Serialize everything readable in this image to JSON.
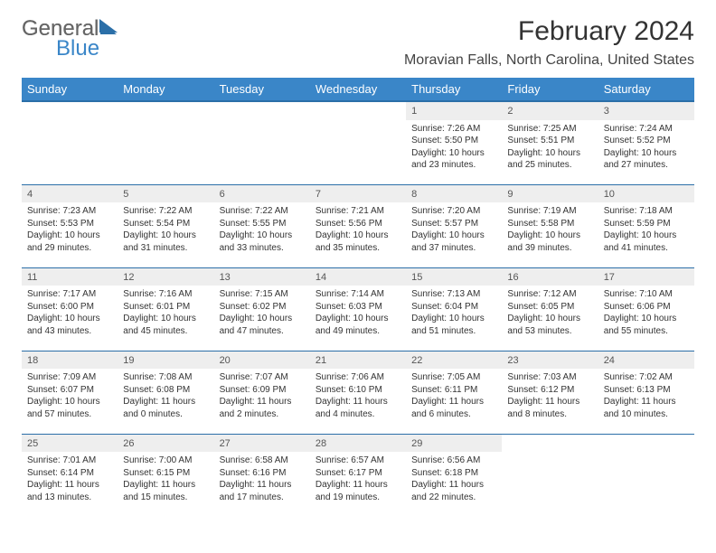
{
  "logo": {
    "part1": "General",
    "part2": "Blue"
  },
  "title": "February 2024",
  "location": "Moravian Falls, North Carolina, United States",
  "colors": {
    "header_bg": "#3a86c8",
    "header_border": "#2b6fa8",
    "daynum_bg": "#eeeeee",
    "text": "#333333",
    "logo_gray": "#666666",
    "logo_blue": "#3a86c8"
  },
  "weekdays": [
    "Sunday",
    "Monday",
    "Tuesday",
    "Wednesday",
    "Thursday",
    "Friday",
    "Saturday"
  ],
  "weeks": [
    [
      null,
      null,
      null,
      null,
      {
        "n": "1",
        "sr": "7:26 AM",
        "ss": "5:50 PM",
        "dl": "10 hours and 23 minutes."
      },
      {
        "n": "2",
        "sr": "7:25 AM",
        "ss": "5:51 PM",
        "dl": "10 hours and 25 minutes."
      },
      {
        "n": "3",
        "sr": "7:24 AM",
        "ss": "5:52 PM",
        "dl": "10 hours and 27 minutes."
      }
    ],
    [
      {
        "n": "4",
        "sr": "7:23 AM",
        "ss": "5:53 PM",
        "dl": "10 hours and 29 minutes."
      },
      {
        "n": "5",
        "sr": "7:22 AM",
        "ss": "5:54 PM",
        "dl": "10 hours and 31 minutes."
      },
      {
        "n": "6",
        "sr": "7:22 AM",
        "ss": "5:55 PM",
        "dl": "10 hours and 33 minutes."
      },
      {
        "n": "7",
        "sr": "7:21 AM",
        "ss": "5:56 PM",
        "dl": "10 hours and 35 minutes."
      },
      {
        "n": "8",
        "sr": "7:20 AM",
        "ss": "5:57 PM",
        "dl": "10 hours and 37 minutes."
      },
      {
        "n": "9",
        "sr": "7:19 AM",
        "ss": "5:58 PM",
        "dl": "10 hours and 39 minutes."
      },
      {
        "n": "10",
        "sr": "7:18 AM",
        "ss": "5:59 PM",
        "dl": "10 hours and 41 minutes."
      }
    ],
    [
      {
        "n": "11",
        "sr": "7:17 AM",
        "ss": "6:00 PM",
        "dl": "10 hours and 43 minutes."
      },
      {
        "n": "12",
        "sr": "7:16 AM",
        "ss": "6:01 PM",
        "dl": "10 hours and 45 minutes."
      },
      {
        "n": "13",
        "sr": "7:15 AM",
        "ss": "6:02 PM",
        "dl": "10 hours and 47 minutes."
      },
      {
        "n": "14",
        "sr": "7:14 AM",
        "ss": "6:03 PM",
        "dl": "10 hours and 49 minutes."
      },
      {
        "n": "15",
        "sr": "7:13 AM",
        "ss": "6:04 PM",
        "dl": "10 hours and 51 minutes."
      },
      {
        "n": "16",
        "sr": "7:12 AM",
        "ss": "6:05 PM",
        "dl": "10 hours and 53 minutes."
      },
      {
        "n": "17",
        "sr": "7:10 AM",
        "ss": "6:06 PM",
        "dl": "10 hours and 55 minutes."
      }
    ],
    [
      {
        "n": "18",
        "sr": "7:09 AM",
        "ss": "6:07 PM",
        "dl": "10 hours and 57 minutes."
      },
      {
        "n": "19",
        "sr": "7:08 AM",
        "ss": "6:08 PM",
        "dl": "11 hours and 0 minutes."
      },
      {
        "n": "20",
        "sr": "7:07 AM",
        "ss": "6:09 PM",
        "dl": "11 hours and 2 minutes."
      },
      {
        "n": "21",
        "sr": "7:06 AM",
        "ss": "6:10 PM",
        "dl": "11 hours and 4 minutes."
      },
      {
        "n": "22",
        "sr": "7:05 AM",
        "ss": "6:11 PM",
        "dl": "11 hours and 6 minutes."
      },
      {
        "n": "23",
        "sr": "7:03 AM",
        "ss": "6:12 PM",
        "dl": "11 hours and 8 minutes."
      },
      {
        "n": "24",
        "sr": "7:02 AM",
        "ss": "6:13 PM",
        "dl": "11 hours and 10 minutes."
      }
    ],
    [
      {
        "n": "25",
        "sr": "7:01 AM",
        "ss": "6:14 PM",
        "dl": "11 hours and 13 minutes."
      },
      {
        "n": "26",
        "sr": "7:00 AM",
        "ss": "6:15 PM",
        "dl": "11 hours and 15 minutes."
      },
      {
        "n": "27",
        "sr": "6:58 AM",
        "ss": "6:16 PM",
        "dl": "11 hours and 17 minutes."
      },
      {
        "n": "28",
        "sr": "6:57 AM",
        "ss": "6:17 PM",
        "dl": "11 hours and 19 minutes."
      },
      {
        "n": "29",
        "sr": "6:56 AM",
        "ss": "6:18 PM",
        "dl": "11 hours and 22 minutes."
      },
      null,
      null
    ]
  ],
  "labels": {
    "sunrise": "Sunrise: ",
    "sunset": "Sunset: ",
    "daylight": "Daylight: "
  }
}
